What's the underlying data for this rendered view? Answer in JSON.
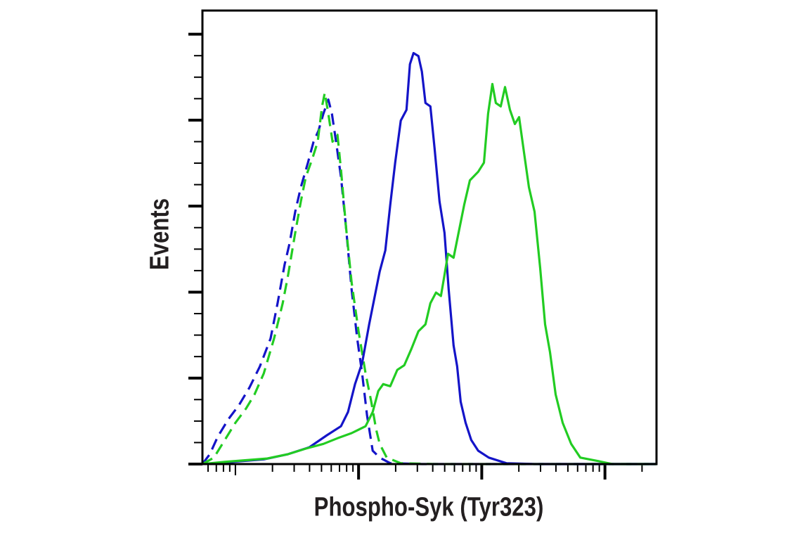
{
  "chart_data": {
    "type": "line",
    "title": "",
    "xlabel": "Phospho-Syk (Tyr323)",
    "ylabel": "Events",
    "x_scale": "log",
    "xlim": [
      54,
      262144
    ],
    "ylim": [
      0,
      105.5
    ],
    "y_major_ticks": [
      0,
      20,
      40,
      60,
      80,
      100
    ],
    "x_major_ticks": [
      1000,
      10000,
      100000
    ],
    "tick_labels_shown": false,
    "grid": false,
    "legend": "none",
    "series": [
      {
        "color": "#1414c8",
        "style": "dashed",
        "x": [
          54,
          62,
          72,
          88,
          107,
          130,
          158,
          193,
          220,
          251,
          275,
          306,
          340,
          388,
          431,
          472,
          518,
          568,
          607,
          656,
          720,
          789,
          877,
          975,
          1068,
          1171,
          1301,
          1484,
          1807,
          3266,
          262144
        ],
        "y": [
          0,
          2.3,
          6.4,
          10.5,
          13.7,
          17.8,
          22.7,
          29.2,
          37.4,
          46.4,
          51.3,
          58.7,
          64.4,
          70.1,
          75.0,
          77.5,
          81.5,
          84.8,
          81.5,
          75.0,
          66.8,
          55.4,
          40.7,
          29.2,
          21.1,
          11.3,
          3.1,
          1.5,
          0.2,
          0,
          0
        ]
      },
      {
        "color": "#22cc22",
        "style": "dashed",
        "x": [
          54,
          67,
          82,
          100,
          122,
          143,
          170,
          206,
          242,
          268,
          306,
          340,
          373,
          420,
          466,
          505,
          532,
          568,
          615,
          674,
          720,
          789,
          877,
          1000,
          1140,
          1267,
          1389,
          1484,
          1693,
          2202,
          4140,
          262144
        ],
        "y": [
          0,
          1.5,
          5.6,
          9.6,
          12.9,
          16.2,
          21.1,
          29.2,
          37.4,
          44.0,
          53.8,
          61.1,
          66.8,
          70.9,
          75.0,
          83.2,
          86.4,
          81.5,
          75.0,
          76.6,
          68.5,
          55.4,
          42.3,
          30.9,
          21.1,
          14.5,
          8.0,
          4.7,
          1.5,
          0.2,
          0,
          0
        ]
      },
      {
        "color": "#1414c8",
        "style": "solid",
        "x": [
          54,
          94,
          170,
          268,
          398,
          553,
          720,
          821,
          936,
          1068,
          1218,
          1389,
          1484,
          1648,
          1807,
          1982,
          2202,
          2448,
          2612,
          2792,
          3062,
          3266,
          3490,
          3827,
          4140,
          4540,
          4981,
          5387,
          5908,
          6310,
          6740,
          7390,
          8211,
          9355,
          11400,
          15850,
          26830,
          262144
        ],
        "y": [
          0,
          0.5,
          1.1,
          2.3,
          3.9,
          6.7,
          8.8,
          12.1,
          18.6,
          23.5,
          32.5,
          40.7,
          44.8,
          49.7,
          60.3,
          70.1,
          79.9,
          82.4,
          93.0,
          95.6,
          94.9,
          91.3,
          84.0,
          83.2,
          73.4,
          61.1,
          53.8,
          40.7,
          27.6,
          22.7,
          14.5,
          9.6,
          5.6,
          3.1,
          1.5,
          0.2,
          0,
          0
        ]
      },
      {
        "color": "#22cc22",
        "style": "solid",
        "x": [
          54,
          82,
          181,
          268,
          373,
          518,
          674,
          877,
          1140,
          1301,
          1445,
          1585,
          1807,
          2062,
          2351,
          2683,
          3062,
          3490,
          3827,
          4254,
          4663,
          4981,
          5321,
          5908,
          6478,
          7197,
          8005,
          9355,
          10410,
          11250,
          12190,
          13000,
          14260,
          15450,
          16930,
          18570,
          20100,
          22020,
          24150,
          26830,
          29790,
          32660,
          35810,
          39810,
          45400,
          53200,
          63100,
          87700,
          114000,
          262144
        ],
        "y": [
          0,
          0.5,
          1.3,
          2.3,
          3.6,
          4.7,
          6.0,
          7.2,
          8.8,
          12.1,
          17.0,
          18.6,
          18.1,
          21.9,
          23.0,
          26.8,
          30.9,
          32.5,
          37.4,
          39.9,
          39.1,
          44.0,
          48.9,
          48.0,
          53.8,
          60.3,
          66.0,
          68.0,
          70.1,
          81.5,
          88.4,
          84.0,
          83.2,
          87.7,
          82.4,
          79.1,
          80.7,
          72.5,
          64.4,
          58.7,
          45.6,
          32.5,
          26.0,
          16.2,
          9.6,
          4.7,
          1.5,
          0.7,
          0,
          0
        ]
      }
    ]
  }
}
